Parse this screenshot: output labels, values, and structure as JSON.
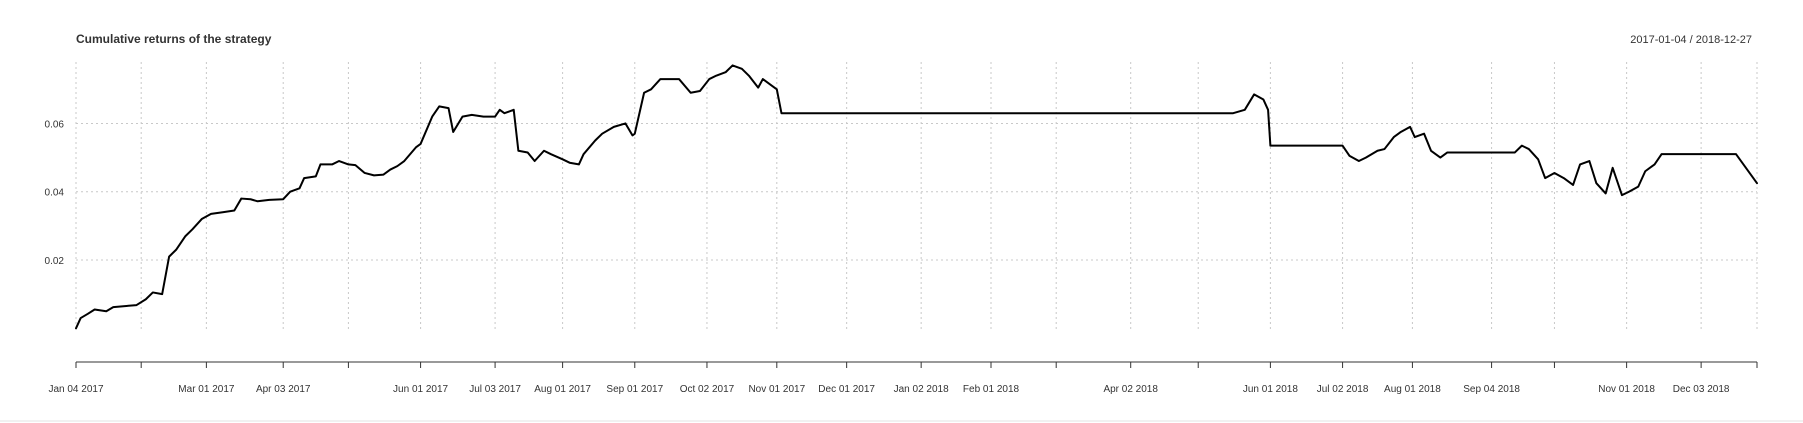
{
  "chart_data": {
    "type": "line",
    "title": "Cumulative returns of the strategy",
    "date_range": "2017-01-04 / 2018-12-27",
    "xlabel": "",
    "ylabel": "",
    "x_range": [
      "2017-01-04",
      "2018-12-27"
    ],
    "ylim": [
      -0.0005,
      0.078
    ],
    "y_ticks": [
      {
        "value": 0.02,
        "label": "0.02"
      },
      {
        "value": 0.04,
        "label": "0.04"
      },
      {
        "value": 0.06,
        "label": "0.06"
      }
    ],
    "x_ticks": [
      {
        "date": "2017-01-04",
        "label": "Jan 04 2017"
      },
      {
        "date": "2017-03-01",
        "label": "Mar 01 2017"
      },
      {
        "date": "2017-04-03",
        "label": "Apr 03 2017"
      },
      {
        "date": "2017-06-01",
        "label": "Jun 01 2017"
      },
      {
        "date": "2017-07-03",
        "label": "Jul 03 2017"
      },
      {
        "date": "2017-08-01",
        "label": "Aug 01 2017"
      },
      {
        "date": "2017-09-01",
        "label": "Sep 01 2017"
      },
      {
        "date": "2017-10-02",
        "label": "Oct 02 2017"
      },
      {
        "date": "2017-11-01",
        "label": "Nov 01 2017"
      },
      {
        "date": "2017-12-01",
        "label": "Dec 01 2017"
      },
      {
        "date": "2018-01-02",
        "label": "Jan 02 2018"
      },
      {
        "date": "2018-02-01",
        "label": "Feb 01 2018"
      },
      {
        "date": "2018-04-02",
        "label": "Apr 02 2018"
      },
      {
        "date": "2018-06-01",
        "label": "Jun 01 2018"
      },
      {
        "date": "2018-07-02",
        "label": "Jul 02 2018"
      },
      {
        "date": "2018-08-01",
        "label": "Aug 01 2018"
      },
      {
        "date": "2018-09-04",
        "label": "Sep 04 2018"
      },
      {
        "date": "2018-11-01",
        "label": "Nov 01 2018"
      },
      {
        "date": "2018-12-03",
        "label": "Dec 03 2018"
      }
    ],
    "vertical_grid_dates": [
      "2017-01-04",
      "2017-02-01",
      "2017-03-01",
      "2017-04-03",
      "2017-05-01",
      "2017-06-01",
      "2017-07-03",
      "2017-08-01",
      "2017-09-01",
      "2017-10-02",
      "2017-11-01",
      "2017-12-01",
      "2018-01-02",
      "2018-02-01",
      "2018-03-01",
      "2018-04-02",
      "2018-05-01",
      "2018-06-01",
      "2018-07-02",
      "2018-08-01",
      "2018-09-04",
      "2018-10-01",
      "2018-11-01",
      "2018-12-03",
      "2018-12-27"
    ],
    "grid": true,
    "legend": "none",
    "series": [
      {
        "color": "#000000",
        "points": [
          [
            "2017-01-04",
            0.0
          ],
          [
            "2017-01-06",
            0.003
          ],
          [
            "2017-01-09",
            0.0042
          ],
          [
            "2017-01-12",
            0.0055
          ],
          [
            "2017-01-17",
            0.005
          ],
          [
            "2017-01-20",
            0.0062
          ],
          [
            "2017-01-25",
            0.0065
          ],
          [
            "2017-01-30",
            0.0068
          ],
          [
            "2017-02-03",
            0.0085
          ],
          [
            "2017-02-06",
            0.0105
          ],
          [
            "2017-02-10",
            0.01
          ],
          [
            "2017-02-13",
            0.021
          ],
          [
            "2017-02-16",
            0.023
          ],
          [
            "2017-02-20",
            0.027
          ],
          [
            "2017-02-23",
            0.029
          ],
          [
            "2017-02-27",
            0.032
          ],
          [
            "2017-03-03",
            0.0335
          ],
          [
            "2017-03-08",
            0.034
          ],
          [
            "2017-03-13",
            0.0345
          ],
          [
            "2017-03-16",
            0.038
          ],
          [
            "2017-03-20",
            0.0378
          ],
          [
            "2017-03-23",
            0.0372
          ],
          [
            "2017-03-28",
            0.0376
          ],
          [
            "2017-04-03",
            0.0378
          ],
          [
            "2017-04-06",
            0.04
          ],
          [
            "2017-04-10",
            0.041
          ],
          [
            "2017-04-12",
            0.044
          ],
          [
            "2017-04-17",
            0.0445
          ],
          [
            "2017-04-19",
            0.048
          ],
          [
            "2017-04-24",
            0.048
          ],
          [
            "2017-04-27",
            0.049
          ],
          [
            "2017-05-01",
            0.048
          ],
          [
            "2017-05-04",
            0.0478
          ],
          [
            "2017-05-08",
            0.0455
          ],
          [
            "2017-05-12",
            0.0448
          ],
          [
            "2017-05-16",
            0.045
          ],
          [
            "2017-05-19",
            0.0465
          ],
          [
            "2017-05-22",
            0.0475
          ],
          [
            "2017-05-25",
            0.049
          ],
          [
            "2017-05-30",
            0.053
          ],
          [
            "2017-06-01",
            0.054
          ],
          [
            "2017-06-06",
            0.062
          ],
          [
            "2017-06-09",
            0.065
          ],
          [
            "2017-06-13",
            0.0645
          ],
          [
            "2017-06-15",
            0.0575
          ],
          [
            "2017-06-19",
            0.062
          ],
          [
            "2017-06-23",
            0.0625
          ],
          [
            "2017-06-28",
            0.062
          ],
          [
            "2017-07-03",
            0.062
          ],
          [
            "2017-07-05",
            0.064
          ],
          [
            "2017-07-07",
            0.063
          ],
          [
            "2017-07-11",
            0.064
          ],
          [
            "2017-07-13",
            0.052
          ],
          [
            "2017-07-17",
            0.0515
          ],
          [
            "2017-07-20",
            0.049
          ],
          [
            "2017-07-24",
            0.052
          ],
          [
            "2017-07-27",
            0.051
          ],
          [
            "2017-08-01",
            0.0495
          ],
          [
            "2017-08-04",
            0.0485
          ],
          [
            "2017-08-08",
            0.048
          ],
          [
            "2017-08-10",
            0.051
          ],
          [
            "2017-08-15",
            0.055
          ],
          [
            "2017-08-18",
            0.057
          ],
          [
            "2017-08-23",
            0.059
          ],
          [
            "2017-08-28",
            0.06
          ],
          [
            "2017-08-31",
            0.0565
          ],
          [
            "2017-09-01",
            0.057
          ],
          [
            "2017-09-05",
            0.069
          ],
          [
            "2017-09-08",
            0.07
          ],
          [
            "2017-09-12",
            0.073
          ],
          [
            "2017-09-20",
            0.073
          ],
          [
            "2017-09-25",
            0.069
          ],
          [
            "2017-09-29",
            0.0695
          ],
          [
            "2017-10-03",
            0.073
          ],
          [
            "2017-10-06",
            0.074
          ],
          [
            "2017-10-10",
            0.075
          ],
          [
            "2017-10-13",
            0.077
          ],
          [
            "2017-10-17",
            0.076
          ],
          [
            "2017-10-20",
            0.074
          ],
          [
            "2017-10-24",
            0.0705
          ],
          [
            "2017-10-26",
            0.073
          ],
          [
            "2017-10-30",
            0.071
          ],
          [
            "2017-11-01",
            0.07
          ],
          [
            "2017-11-03",
            0.063
          ],
          [
            "2018-05-16",
            0.063
          ],
          [
            "2018-05-21",
            0.064
          ],
          [
            "2018-05-25",
            0.0685
          ],
          [
            "2018-05-29",
            0.067
          ],
          [
            "2018-05-31",
            0.064
          ],
          [
            "2018-06-01",
            0.0535
          ],
          [
            "2018-07-02",
            0.0535
          ],
          [
            "2018-07-05",
            0.0505
          ],
          [
            "2018-07-09",
            0.049
          ],
          [
            "2018-07-12",
            0.05
          ],
          [
            "2018-07-17",
            0.052
          ],
          [
            "2018-07-20",
            0.0525
          ],
          [
            "2018-07-24",
            0.056
          ],
          [
            "2018-07-27",
            0.0575
          ],
          [
            "2018-07-31",
            0.059
          ],
          [
            "2018-08-02",
            0.056
          ],
          [
            "2018-08-06",
            0.057
          ],
          [
            "2018-08-09",
            0.052
          ],
          [
            "2018-08-13",
            0.05
          ],
          [
            "2018-08-16",
            0.0515
          ],
          [
            "2018-09-14",
            0.0515
          ],
          [
            "2018-09-17",
            0.0535
          ],
          [
            "2018-09-20",
            0.0525
          ],
          [
            "2018-09-24",
            0.0495
          ],
          [
            "2018-09-27",
            0.044
          ],
          [
            "2018-10-01",
            0.0455
          ],
          [
            "2018-10-05",
            0.044
          ],
          [
            "2018-10-09",
            0.042
          ],
          [
            "2018-10-12",
            0.048
          ],
          [
            "2018-10-16",
            0.049
          ],
          [
            "2018-10-19",
            0.0425
          ],
          [
            "2018-10-23",
            0.0395
          ],
          [
            "2018-10-26",
            0.047
          ],
          [
            "2018-10-30",
            0.039
          ],
          [
            "2018-11-02",
            0.04
          ],
          [
            "2018-11-06",
            0.0415
          ],
          [
            "2018-11-09",
            0.046
          ],
          [
            "2018-11-13",
            0.048
          ],
          [
            "2018-11-16",
            0.051
          ],
          [
            "2018-12-18",
            0.051
          ],
          [
            "2018-12-27",
            0.0425
          ]
        ]
      }
    ]
  }
}
